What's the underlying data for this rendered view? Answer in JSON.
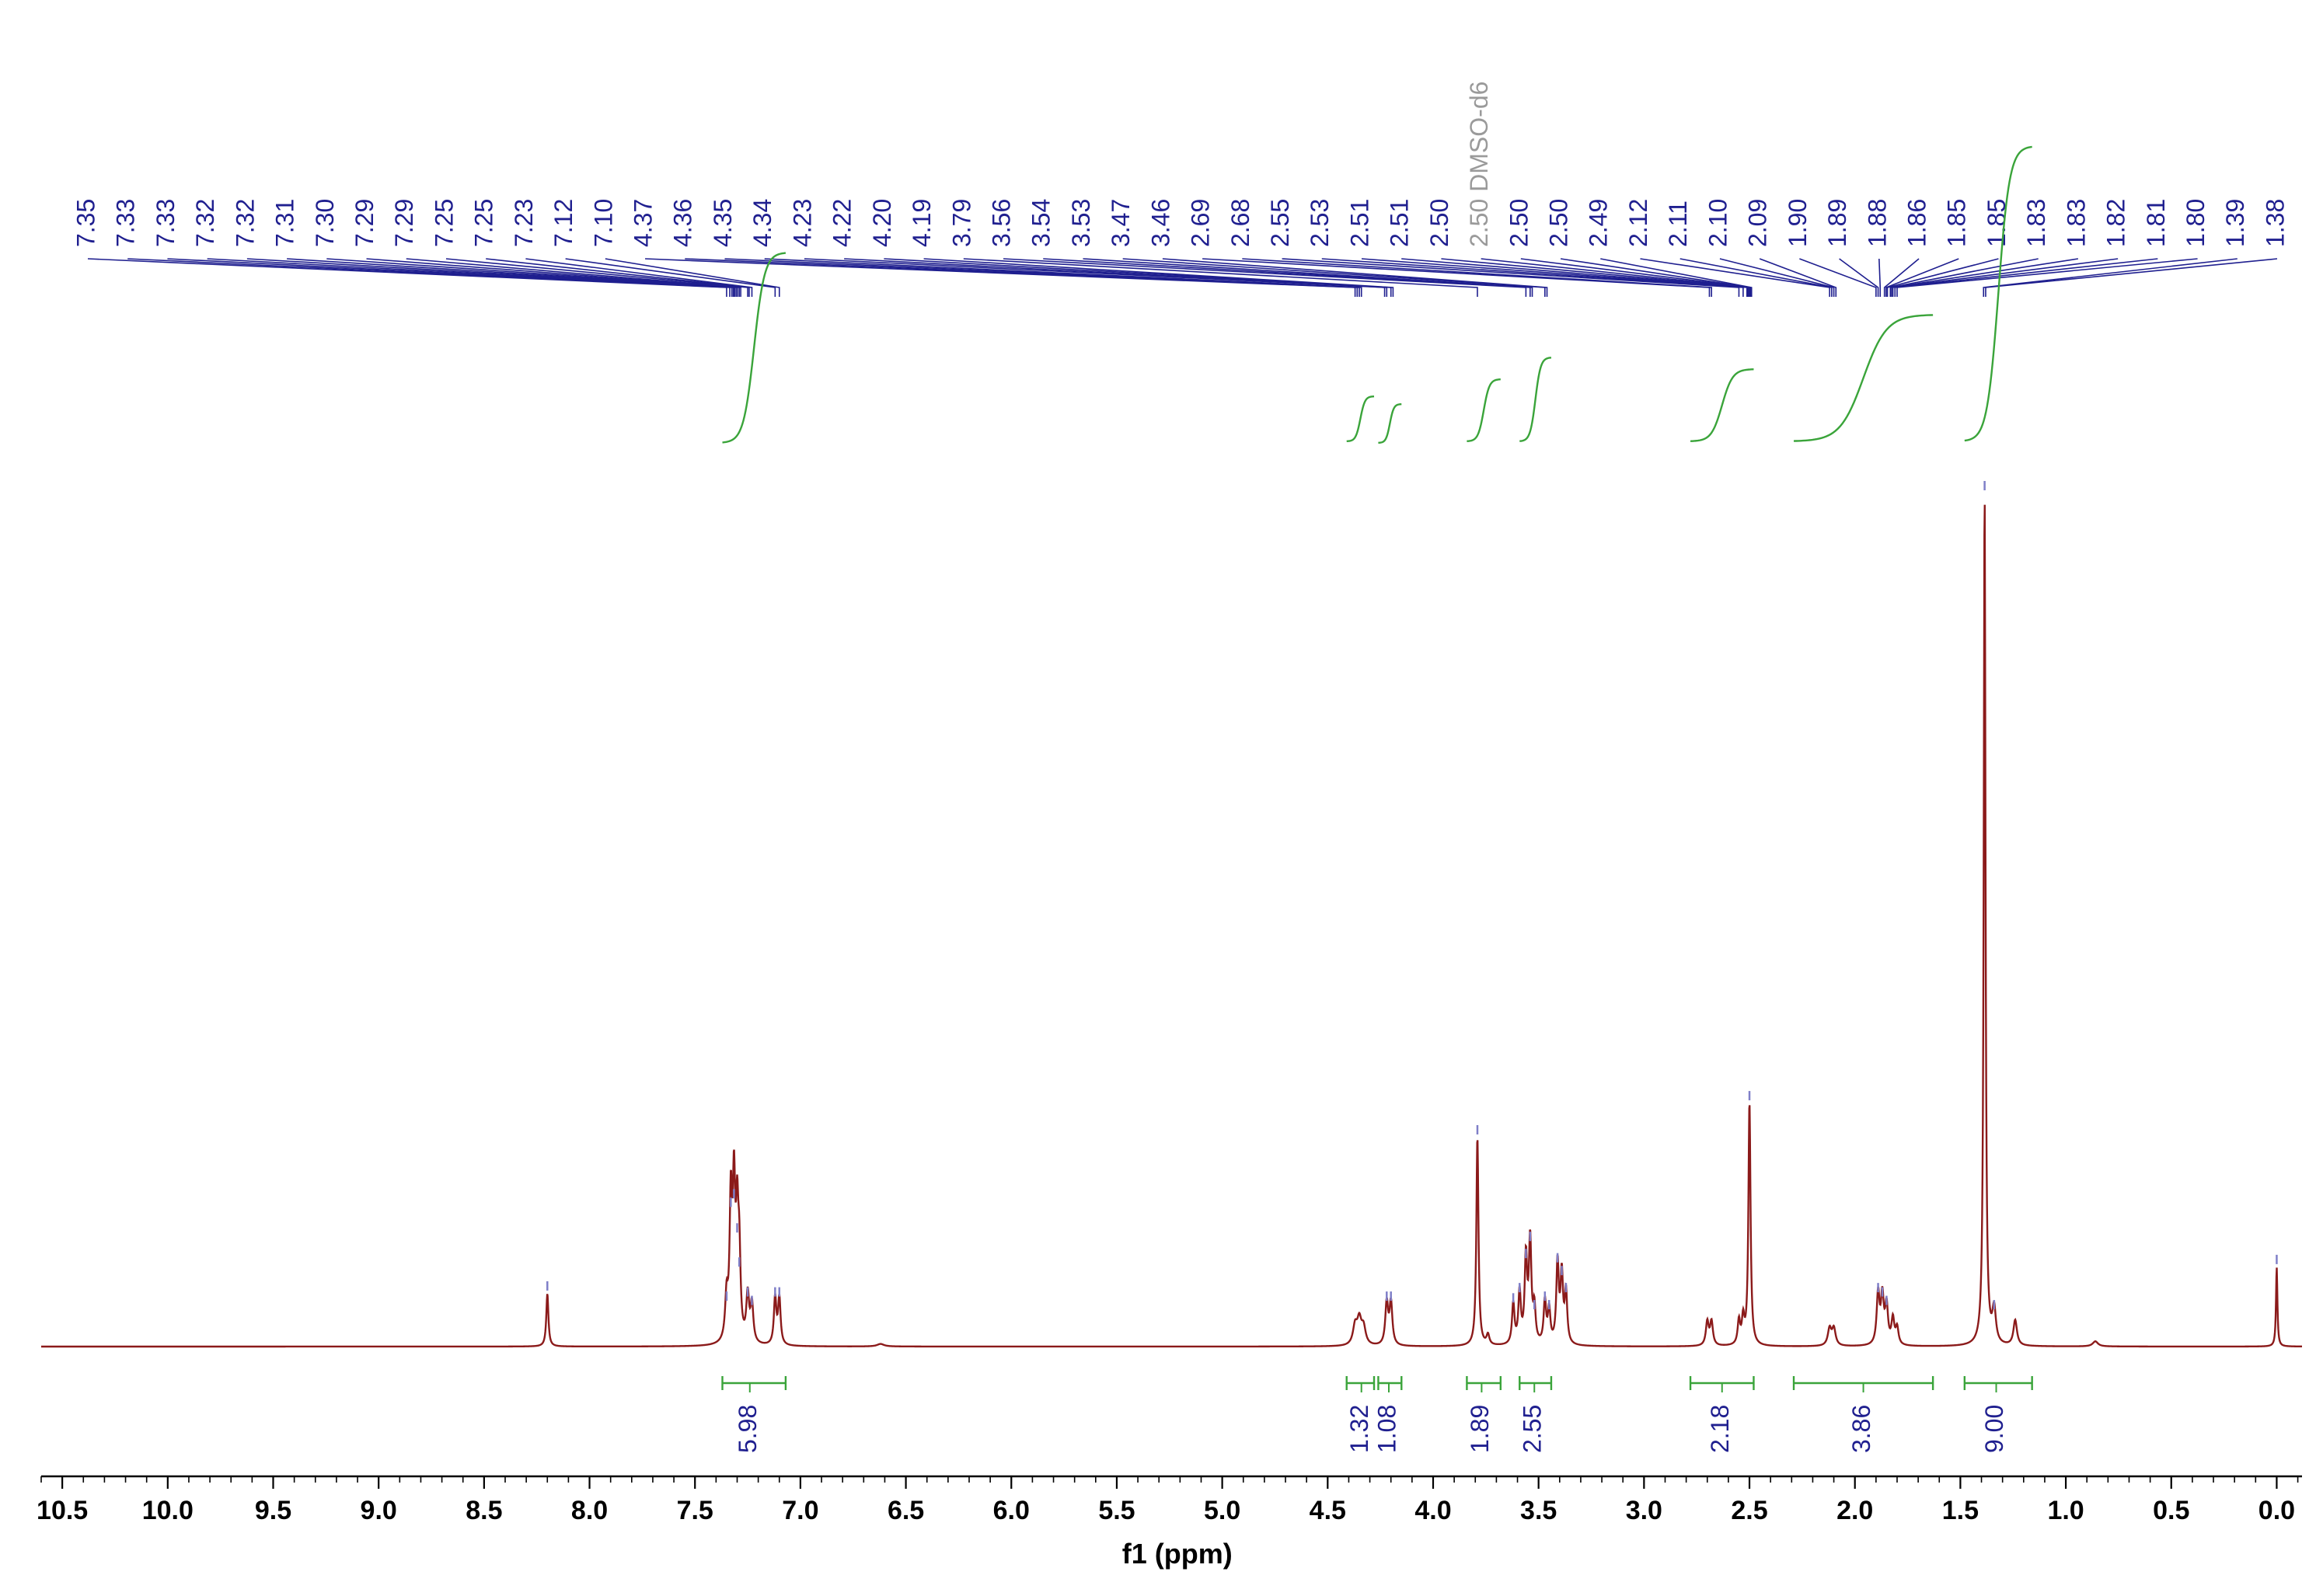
{
  "chart_data": {
    "type": "line",
    "title": "",
    "xlabel": "f1 (ppm)",
    "ylabel": "",
    "xlim": [
      10.6,
      -0.12
    ],
    "x_reversed": true,
    "grid": false,
    "legend": "none",
    "colors": {
      "spectrum": "#8b1a1a",
      "peak_labels": "#1f1f8f",
      "solvent_label": "#9a9a9a",
      "integral_curve": "#3aa43a",
      "integral_bracket": "#3aa43a",
      "integral_value": "#1f1f8f"
    },
    "x_ticks": [
      {
        "value": 10.5,
        "label": "10.5"
      },
      {
        "value": 10.0,
        "label": "10.0"
      },
      {
        "value": 9.5,
        "label": "9.5"
      },
      {
        "value": 9.0,
        "label": "9.0"
      },
      {
        "value": 8.5,
        "label": "8.5"
      },
      {
        "value": 8.0,
        "label": "8.0"
      },
      {
        "value": 7.5,
        "label": "7.5"
      },
      {
        "value": 7.0,
        "label": "7.0"
      },
      {
        "value": 6.5,
        "label": "6.5"
      },
      {
        "value": 6.0,
        "label": "6.0"
      },
      {
        "value": 5.5,
        "label": "5.5"
      },
      {
        "value": 5.0,
        "label": "5.0"
      },
      {
        "value": 4.5,
        "label": "4.5"
      },
      {
        "value": 4.0,
        "label": "4.0"
      },
      {
        "value": 3.5,
        "label": "3.5"
      },
      {
        "value": 3.0,
        "label": "3.0"
      },
      {
        "value": 2.5,
        "label": "2.5"
      },
      {
        "value": 2.0,
        "label": "2.0"
      },
      {
        "value": 1.5,
        "label": "1.5"
      },
      {
        "value": 1.0,
        "label": "1.0"
      },
      {
        "value": 0.5,
        "label": "0.5"
      },
      {
        "value": 0.0,
        "label": "0.0"
      }
    ],
    "peak_labels": [
      {
        "label": "7.35",
        "ppm": 7.35
      },
      {
        "label": "7.33",
        "ppm": 7.335
      },
      {
        "label": "7.33",
        "ppm": 7.325
      },
      {
        "label": "7.32",
        "ppm": 7.318
      },
      {
        "label": "7.32",
        "ppm": 7.312
      },
      {
        "label": "7.31",
        "ppm": 7.305
      },
      {
        "label": "7.30",
        "ppm": 7.298
      },
      {
        "label": "7.29",
        "ppm": 7.29
      },
      {
        "label": "7.29",
        "ppm": 7.283
      },
      {
        "label": "7.25",
        "ppm": 7.25
      },
      {
        "label": "7.25",
        "ppm": 7.243
      },
      {
        "label": "7.23",
        "ppm": 7.23
      },
      {
        "label": "7.12",
        "ppm": 7.12
      },
      {
        "label": "7.10",
        "ppm": 7.1
      },
      {
        "label": "4.37",
        "ppm": 4.37
      },
      {
        "label": "4.36",
        "ppm": 4.36
      },
      {
        "label": "4.35",
        "ppm": 4.35
      },
      {
        "label": "4.34",
        "ppm": 4.34
      },
      {
        "label": "4.23",
        "ppm": 4.23
      },
      {
        "label": "4.22",
        "ppm": 4.22
      },
      {
        "label": "4.20",
        "ppm": 4.2
      },
      {
        "label": "4.19",
        "ppm": 4.19
      },
      {
        "label": "3.79",
        "ppm": 3.79
      },
      {
        "label": "3.56",
        "ppm": 3.56
      },
      {
        "label": "3.54",
        "ppm": 3.54
      },
      {
        "label": "3.53",
        "ppm": 3.53
      },
      {
        "label": "3.47",
        "ppm": 3.47
      },
      {
        "label": "3.46",
        "ppm": 3.46
      },
      {
        "label": "2.69",
        "ppm": 2.69
      },
      {
        "label": "2.68",
        "ppm": 2.68
      },
      {
        "label": "2.55",
        "ppm": 2.55
      },
      {
        "label": "2.53",
        "ppm": 2.53
      },
      {
        "label": "2.51",
        "ppm": 2.512
      },
      {
        "label": "2.51",
        "ppm": 2.508
      },
      {
        "label": "2.50",
        "ppm": 2.504
      },
      {
        "label": "2.50 DMSO-d6",
        "ppm": 2.5,
        "solvent": true
      },
      {
        "label": "2.50",
        "ppm": 2.497
      },
      {
        "label": "2.50",
        "ppm": 2.494
      },
      {
        "label": "2.49",
        "ppm": 2.49
      },
      {
        "label": "2.12",
        "ppm": 2.12
      },
      {
        "label": "2.11",
        "ppm": 2.11
      },
      {
        "label": "2.10",
        "ppm": 2.1
      },
      {
        "label": "2.09",
        "ppm": 2.09
      },
      {
        "label": "1.90",
        "ppm": 1.9
      },
      {
        "label": "1.89",
        "ppm": 1.89
      },
      {
        "label": "1.88",
        "ppm": 1.88
      },
      {
        "label": "1.86",
        "ppm": 1.86
      },
      {
        "label": "1.85",
        "ppm": 1.852
      },
      {
        "label": "1.85",
        "ppm": 1.846
      },
      {
        "label": "1.83",
        "ppm": 1.832
      },
      {
        "label": "1.83",
        "ppm": 1.826
      },
      {
        "label": "1.82",
        "ppm": 1.82
      },
      {
        "label": "1.81",
        "ppm": 1.81
      },
      {
        "label": "1.80",
        "ppm": 1.8
      },
      {
        "label": "1.39",
        "ppm": 1.39
      },
      {
        "label": "1.38",
        "ppm": 1.38
      }
    ],
    "integrals": [
      {
        "value": "5.98",
        "from": 7.37,
        "to": 7.07,
        "center": 7.24
      },
      {
        "value": "1.32",
        "from": 4.41,
        "to": 4.28,
        "center": 4.34
      },
      {
        "value": "1.08",
        "from": 4.26,
        "to": 4.15,
        "center": 4.21
      },
      {
        "value": "1.89",
        "from": 3.84,
        "to": 3.68,
        "center": 3.77
      },
      {
        "value": "2.55",
        "from": 3.59,
        "to": 3.44,
        "center": 3.52
      },
      {
        "value": "2.18",
        "from": 2.78,
        "to": 2.48,
        "center": 2.63
      },
      {
        "value": "3.86",
        "from": 2.29,
        "to": 1.63,
        "center": 1.96
      },
      {
        "value": "9.00",
        "from": 1.48,
        "to": 1.16,
        "center": 1.33
      }
    ],
    "peaks": [
      {
        "ppm": 8.2,
        "height": 0.062,
        "width": 0.006
      },
      {
        "ppm": 7.35,
        "height": 0.05,
        "width": 0.008
      },
      {
        "ppm": 7.33,
        "height": 0.16,
        "width": 0.007
      },
      {
        "ppm": 7.315,
        "height": 0.17,
        "width": 0.007
      },
      {
        "ppm": 7.3,
        "height": 0.13,
        "width": 0.007
      },
      {
        "ppm": 7.29,
        "height": 0.09,
        "width": 0.007
      },
      {
        "ppm": 7.25,
        "height": 0.055,
        "width": 0.008
      },
      {
        "ppm": 7.23,
        "height": 0.045,
        "width": 0.008
      },
      {
        "ppm": 7.12,
        "height": 0.055,
        "width": 0.007
      },
      {
        "ppm": 7.1,
        "height": 0.055,
        "width": 0.007
      },
      {
        "ppm": 6.62,
        "height": 0.003,
        "width": 0.02
      },
      {
        "ppm": 4.37,
        "height": 0.022,
        "width": 0.012
      },
      {
        "ppm": 4.35,
        "height": 0.028,
        "width": 0.012
      },
      {
        "ppm": 4.33,
        "height": 0.02,
        "width": 0.012
      },
      {
        "ppm": 4.22,
        "height": 0.05,
        "width": 0.008
      },
      {
        "ppm": 4.2,
        "height": 0.05,
        "width": 0.008
      },
      {
        "ppm": 3.79,
        "height": 0.245,
        "width": 0.006
      },
      {
        "ppm": 3.74,
        "height": 0.012,
        "width": 0.008
      },
      {
        "ppm": 3.62,
        "height": 0.048,
        "width": 0.007
      },
      {
        "ppm": 3.59,
        "height": 0.06,
        "width": 0.007
      },
      {
        "ppm": 3.56,
        "height": 0.1,
        "width": 0.007
      },
      {
        "ppm": 3.54,
        "height": 0.12,
        "width": 0.007
      },
      {
        "ppm": 3.52,
        "height": 0.04,
        "width": 0.007
      },
      {
        "ppm": 3.47,
        "height": 0.05,
        "width": 0.007
      },
      {
        "ppm": 3.45,
        "height": 0.04,
        "width": 0.007
      },
      {
        "ppm": 3.41,
        "height": 0.095,
        "width": 0.007
      },
      {
        "ppm": 3.39,
        "height": 0.08,
        "width": 0.007
      },
      {
        "ppm": 3.37,
        "height": 0.06,
        "width": 0.007
      },
      {
        "ppm": 2.7,
        "height": 0.028,
        "width": 0.008
      },
      {
        "ppm": 2.68,
        "height": 0.028,
        "width": 0.008
      },
      {
        "ppm": 2.55,
        "height": 0.028,
        "width": 0.007
      },
      {
        "ppm": 2.53,
        "height": 0.03,
        "width": 0.007
      },
      {
        "ppm": 2.5,
        "height": 0.285,
        "width": 0.006
      },
      {
        "ppm": 2.12,
        "height": 0.02,
        "width": 0.01
      },
      {
        "ppm": 2.1,
        "height": 0.02,
        "width": 0.01
      },
      {
        "ppm": 1.89,
        "height": 0.06,
        "width": 0.008
      },
      {
        "ppm": 1.87,
        "height": 0.055,
        "width": 0.008
      },
      {
        "ppm": 1.85,
        "height": 0.045,
        "width": 0.008
      },
      {
        "ppm": 1.82,
        "height": 0.03,
        "width": 0.008
      },
      {
        "ppm": 1.8,
        "height": 0.02,
        "width": 0.008
      },
      {
        "ppm": 1.385,
        "height": 1.0,
        "width": 0.005
      },
      {
        "ppm": 1.34,
        "height": 0.04,
        "width": 0.01
      },
      {
        "ppm": 1.24,
        "height": 0.03,
        "width": 0.01
      },
      {
        "ppm": 0.86,
        "height": 0.006,
        "width": 0.015
      },
      {
        "ppm": 0.0,
        "height": 0.093,
        "width": 0.004
      }
    ]
  }
}
